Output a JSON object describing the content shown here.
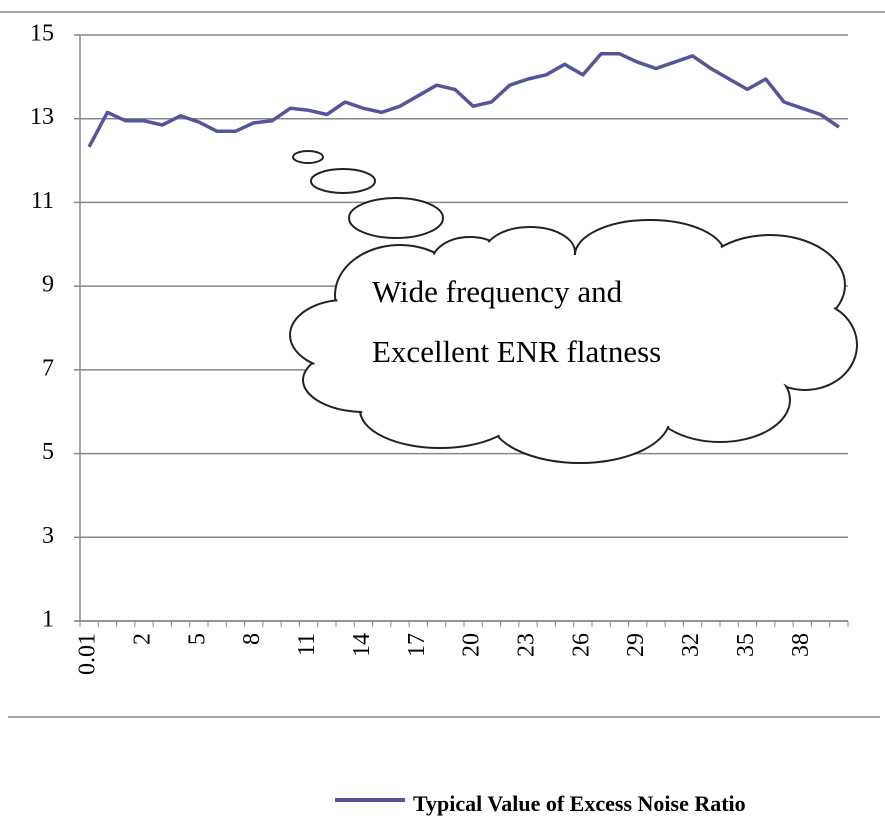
{
  "chart_data": {
    "type": "line",
    "categories": [
      "0.01",
      null,
      null,
      "2",
      null,
      null,
      "5",
      null,
      null,
      "8",
      null,
      null,
      "11",
      null,
      null,
      "14",
      null,
      null,
      "17",
      null,
      null,
      "20",
      null,
      null,
      "23",
      null,
      null,
      "26",
      null,
      null,
      "29",
      null,
      null,
      "32",
      null,
      null,
      "35",
      null,
      null,
      "38",
      null,
      null
    ],
    "series": [
      {
        "name": "Typical Value of Excess Noise Ratio",
        "color": "#55559b",
        "values": [
          12.33,
          13.15,
          12.95,
          12.95,
          12.85,
          13.07,
          12.92,
          12.7,
          12.7,
          12.9,
          12.95,
          13.25,
          13.2,
          13.1,
          13.4,
          13.25,
          13.15,
          13.3,
          13.55,
          13.8,
          13.7,
          13.3,
          13.4,
          13.8,
          13.95,
          14.05,
          14.3,
          14.05,
          14.55,
          14.55,
          14.35,
          14.2,
          14.35,
          14.5,
          14.2,
          13.95,
          13.7,
          13.95,
          13.4,
          13.25,
          13.1,
          12.8
        ]
      }
    ],
    "ylim": [
      1,
      15
    ],
    "yticks": [
      1,
      3,
      5,
      7,
      9,
      11,
      13,
      15
    ],
    "grid": true,
    "annotations": [
      "Wide frequency and",
      "Excellent ENR flatness"
    ]
  }
}
